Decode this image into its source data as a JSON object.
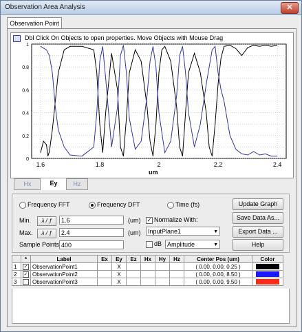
{
  "window": {
    "title": "Observation Area Analysis",
    "close_label": "✕"
  },
  "top_tab": {
    "label": "Observation Point"
  },
  "graph": {
    "hint": "Dbl Click On Objects to open properties.  Move Objects with Mouse Drag",
    "x_unit": "um"
  },
  "chart_data": {
    "type": "line",
    "xlim": [
      1.57,
      2.43
    ],
    "ylim": [
      0,
      1
    ],
    "xticks": [
      "1.6",
      "1.8",
      "2",
      "2.2",
      "2.4"
    ],
    "yticks": [
      "0",
      "0.1",
      "0.2",
      "0.3",
      "0.4",
      "0.5",
      "0.6",
      "0.7",
      "0.8",
      "0.9",
      "1"
    ],
    "grid": true,
    "series": [
      {
        "color": "#000000",
        "x": [
          1.6,
          1.61,
          1.62,
          1.625,
          1.63,
          1.64,
          1.66,
          1.68,
          1.7,
          1.74,
          1.78,
          1.79,
          1.8,
          1.81,
          1.82,
          1.84,
          1.86,
          1.87,
          1.88,
          1.89,
          1.9,
          1.92,
          1.94,
          1.96,
          1.97,
          1.98,
          1.99,
          2.0,
          2.01,
          2.02,
          2.04,
          2.06,
          2.07,
          2.08,
          2.09,
          2.1,
          2.12,
          2.14,
          2.16,
          2.17,
          2.18,
          2.19,
          2.2,
          2.21,
          2.22,
          2.24,
          2.26,
          2.28,
          2.3,
          2.32,
          2.34,
          2.36,
          2.38,
          2.4
        ],
        "y": [
          0.05,
          0.15,
          0.12,
          0.02,
          0.06,
          0.25,
          0.75,
          0.95,
          0.98,
          0.98,
          0.95,
          0.75,
          0.3,
          0.05,
          0.4,
          0.92,
          0.6,
          0.1,
          0.02,
          0.35,
          0.75,
          0.95,
          0.85,
          0.45,
          0.15,
          0.02,
          0.3,
          0.75,
          0.95,
          0.98,
          0.85,
          0.45,
          0.1,
          0.02,
          0.4,
          0.75,
          0.92,
          0.75,
          0.4,
          0.1,
          0.02,
          0.3,
          0.65,
          0.88,
          0.98,
          0.99,
          0.96,
          0.9,
          0.97,
          0.99,
          0.98,
          0.99,
          0.98,
          0.99
        ]
      },
      {
        "color": "#3333aa",
        "x": [
          1.6,
          1.62,
          1.63,
          1.64,
          1.65,
          1.66,
          1.68,
          1.7,
          1.74,
          1.78,
          1.79,
          1.8,
          1.81,
          1.82,
          1.84,
          1.86,
          1.87,
          1.88,
          1.89,
          1.9,
          1.92,
          1.94,
          1.96,
          1.97,
          1.98,
          1.99,
          2.0,
          2.02,
          2.04,
          2.06,
          2.07,
          2.08,
          2.09,
          2.1,
          2.12,
          2.14,
          2.16,
          2.18,
          2.19,
          2.2,
          2.21,
          2.22,
          2.23,
          2.24,
          2.26,
          2.28,
          2.3,
          2.32,
          2.34,
          2.36,
          2.38,
          2.4
        ],
        "y": [
          0.98,
          0.95,
          0.9,
          0.75,
          0.45,
          0.25,
          0.1,
          0.03,
          0.02,
          0.1,
          0.4,
          0.85,
          0.98,
          0.7,
          0.1,
          0.45,
          0.9,
          0.99,
          0.75,
          0.35,
          0.08,
          0.15,
          0.55,
          0.85,
          0.98,
          0.8,
          0.4,
          0.05,
          0.15,
          0.55,
          0.9,
          0.98,
          0.75,
          0.4,
          0.1,
          0.3,
          0.65,
          0.95,
          0.98,
          0.75,
          0.6,
          0.5,
          0.35,
          0.2,
          0.08,
          0.04,
          0.03,
          0.06,
          0.03,
          0.04,
          0.02,
          0.02
        ]
      }
    ]
  },
  "component_tabs": {
    "hx": "Hx",
    "ey": "Ey",
    "hz": "Hz"
  },
  "controls": {
    "radio_fft": "Frequency FFT",
    "radio_dft": "Frequency DFT",
    "radio_time": "Time (fs)",
    "min_label": "Min.",
    "max_label": "Max.",
    "lambda_btn": "λ / ƒ",
    "min_value": "1.6",
    "max_value": "2.4",
    "unit_min": "(um)",
    "unit_max": "(um)",
    "sample_label": "Sample Points:",
    "sample_value": "400",
    "normalize_label": "Normalize With:",
    "normalize_value": "InputPlane1",
    "db_label": "dB",
    "amplitude_value": "Amplitude",
    "update_graph": "Update Graph",
    "save_data": "Save Data As...",
    "export_data": "Export Data ...",
    "help": "Help"
  },
  "table": {
    "headers": [
      "",
      "*",
      "Label",
      "Ex",
      "Ey",
      "Ez",
      "Hx",
      "Hy",
      "Hz",
      "Center Pos (um)",
      "Color"
    ],
    "rows": [
      {
        "num": "1",
        "checked": "✓",
        "label": "ObservationPoint1",
        "ey": "X",
        "pos": "( 0.00, 0.00, 0.25 )",
        "color": "#000000"
      },
      {
        "num": "2",
        "checked": "✓",
        "label": "ObservationPoint2",
        "ey": "X",
        "pos": "( 0.00, 0.00, 8.50 )",
        "color": "#1a1aff"
      },
      {
        "num": "3",
        "checked": "",
        "label": "ObservationPoint3",
        "ey": "X",
        "pos": "( 0.00, 0.00, 9.50 )",
        "color": "#ff2a1a"
      }
    ]
  }
}
